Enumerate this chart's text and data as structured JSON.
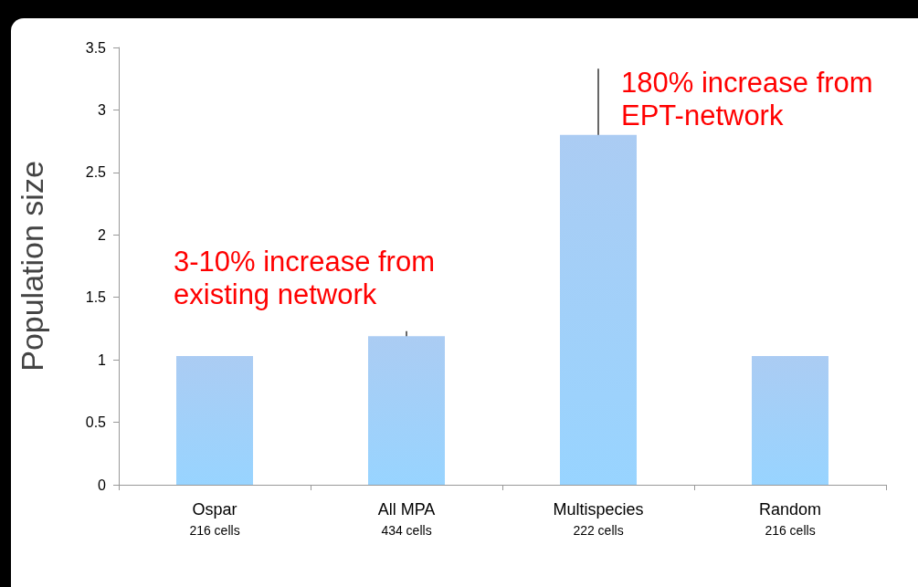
{
  "chart_data": {
    "type": "bar",
    "ylabel": "Population size",
    "categories": [
      "Ospar\n216 cells",
      "All MPA\n434 cells",
      "Multispecies\n222 cells",
      "Random\n216 cells"
    ],
    "values": [
      1.03,
      1.19,
      2.8,
      1.03
    ],
    "errors": [
      null,
      0.04,
      0.53,
      null
    ],
    "color": "#7fb1ee",
    "ylim": [
      0,
      3.5
    ],
    "yticks": [
      0,
      0.5,
      1,
      1.5,
      2,
      2.5,
      3,
      3.5
    ],
    "grid": false,
    "annotations": [
      "3-10% increase from\nexisting network",
      "180% increase from\nEPT-network"
    ]
  }
}
